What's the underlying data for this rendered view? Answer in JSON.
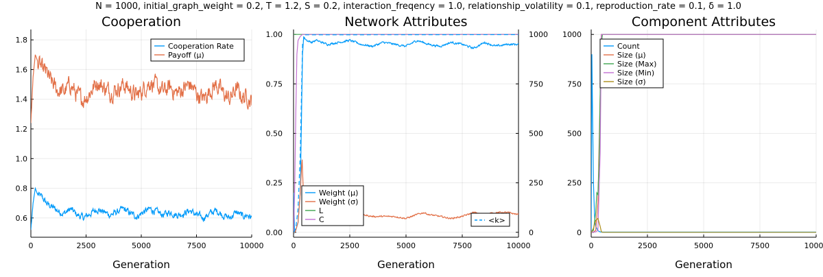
{
  "suptitle": "N = 1000, initial_graph_weight = 0.2, T = 1.2, S = 0.2, interaction_freqency = 1.0, relationship_volatility = 0.1, reproduction_rate = 0.1, δ = 1.0",
  "colors": {
    "blue": "#009AFA",
    "orange": "#E26F46",
    "green": "#3EA44E",
    "purple": "#C270D2",
    "olive": "#AC8D18"
  },
  "chart_data": [
    {
      "type": "line",
      "title": "Cooperation",
      "xlabel": "Generation",
      "xlim": [
        0,
        10000
      ],
      "ylim": [
        0.47,
        1.87
      ],
      "xticks": [
        "0",
        "2500",
        "5000",
        "7500",
        "10000"
      ],
      "yticks": [
        "0.6",
        "0.8",
        "1.0",
        "1.2",
        "1.4",
        "1.6",
        "1.8"
      ],
      "legend_position": "top-right",
      "series": [
        {
          "name": "Cooperation Rate",
          "color": "#009AFA",
          "x": [
            0,
            100,
            200,
            300,
            500,
            700,
            900,
            1200,
            1500,
            1800,
            2100,
            2400,
            2700,
            3000,
            3300,
            3600,
            3900,
            4200,
            4500,
            4800,
            5100,
            5400,
            5700,
            6000,
            6300,
            6600,
            6900,
            7200,
            7500,
            7800,
            8100,
            8400,
            8700,
            9000,
            9300,
            9600,
            9800,
            10000
          ],
          "y": [
            0.52,
            0.7,
            0.8,
            0.76,
            0.74,
            0.7,
            0.68,
            0.65,
            0.63,
            0.66,
            0.62,
            0.6,
            0.63,
            0.66,
            0.64,
            0.62,
            0.64,
            0.66,
            0.63,
            0.61,
            0.64,
            0.66,
            0.64,
            0.62,
            0.64,
            0.62,
            0.63,
            0.65,
            0.62,
            0.6,
            0.63,
            0.65,
            0.62,
            0.6,
            0.64,
            0.61,
            0.62,
            0.6
          ]
        },
        {
          "name": "Payoff (μ)",
          "color": "#E26F46",
          "x": [
            0,
            100,
            200,
            300,
            500,
            700,
            900,
            1200,
            1500,
            1800,
            2100,
            2400,
            2700,
            3000,
            3300,
            3600,
            3900,
            4200,
            4500,
            4800,
            5100,
            5400,
            5700,
            6000,
            6300,
            6600,
            6900,
            7200,
            7500,
            7800,
            8100,
            8400,
            8700,
            9000,
            9300,
            9600,
            9800,
            10000
          ],
          "y": [
            1.24,
            1.55,
            1.7,
            1.66,
            1.6,
            1.58,
            1.52,
            1.46,
            1.45,
            1.5,
            1.42,
            1.4,
            1.45,
            1.52,
            1.48,
            1.45,
            1.47,
            1.5,
            1.46,
            1.42,
            1.47,
            1.52,
            1.48,
            1.45,
            1.48,
            1.44,
            1.47,
            1.5,
            1.44,
            1.4,
            1.46,
            1.5,
            1.44,
            1.4,
            1.47,
            1.41,
            1.42,
            1.38
          ]
        }
      ]
    },
    {
      "type": "line",
      "title": "Network Attributes",
      "xlabel": "Generation",
      "xlim": [
        0,
        10000
      ],
      "ylim": [
        -0.025,
        1.025
      ],
      "y2lim": [
        -25,
        1025
      ],
      "xticks": [
        "0",
        "2500",
        "5000",
        "7500",
        "10000"
      ],
      "yticks": [
        "0.00",
        "0.25",
        "0.50",
        "0.75",
        "1.00"
      ],
      "y2ticks": [
        "0",
        "250",
        "500",
        "750",
        "1000"
      ],
      "legend_position": "bottom-left",
      "legend2_position": "bottom-right",
      "series": [
        {
          "name": "Weight (μ)",
          "color": "#009AFA",
          "x": [
            0,
            50,
            100,
            200,
            300,
            400,
            450,
            500,
            600,
            800,
            1000,
            1500,
            2000,
            2500,
            3000,
            3500,
            4000,
            4500,
            5000,
            5500,
            6000,
            6500,
            7000,
            7500,
            8000,
            8500,
            9000,
            9500,
            10000
          ],
          "y": [
            0.2,
            0.0,
            0.01,
            0.05,
            0.2,
            0.9,
            0.99,
            0.98,
            0.97,
            0.96,
            0.97,
            0.95,
            0.96,
            0.97,
            0.95,
            0.94,
            0.96,
            0.95,
            0.94,
            0.97,
            0.95,
            0.94,
            0.96,
            0.95,
            0.93,
            0.96,
            0.94,
            0.95,
            0.95
          ]
        },
        {
          "name": "Weight (σ)",
          "color": "#E26F46",
          "x": [
            0,
            50,
            100,
            200,
            300,
            380,
            420,
            500,
            600,
            800,
            1000,
            1500,
            2000,
            2500,
            3000,
            3500,
            4000,
            4500,
            5000,
            5500,
            5800,
            6000,
            6500,
            7000,
            7500,
            8000,
            8500,
            9000,
            9500,
            10000
          ],
          "y": [
            0.0,
            0.0,
            0.01,
            0.05,
            0.2,
            0.38,
            0.25,
            0.1,
            0.11,
            0.1,
            0.09,
            0.1,
            0.09,
            0.1,
            0.09,
            0.08,
            0.08,
            0.08,
            0.07,
            0.09,
            0.1,
            0.09,
            0.08,
            0.07,
            0.08,
            0.1,
            0.09,
            0.1,
            0.1,
            0.09
          ]
        },
        {
          "name": "L",
          "color": "#3EA44E",
          "x": [
            0,
            100,
            200,
            300,
            400,
            500,
            10000
          ],
          "y": [
            1.0,
            1.0,
            1.0,
            1.0,
            1.0,
            1.0,
            1.0
          ]
        },
        {
          "name": "C",
          "color": "#C270D2",
          "x": [
            0,
            50,
            100,
            150,
            200,
            300,
            400,
            500,
            10000
          ],
          "y": [
            0.0,
            0.2,
            0.6,
            0.9,
            0.97,
            0.99,
            1.0,
            1.0,
            1.0
          ]
        },
        {
          "name": "<k>",
          "color": "#009AFA",
          "axis": "right",
          "dashed": true,
          "x": [
            0,
            100,
            200,
            300,
            400,
            500,
            10000
          ],
          "y": [
            0,
            20,
            120,
            400,
            950,
            998,
            999
          ]
        }
      ]
    },
    {
      "type": "line",
      "title": "Component Attributes",
      "xlabel": "Generation",
      "xlim": [
        0,
        10000
      ],
      "ylim": [
        -25,
        1025
      ],
      "xticks": [
        "0",
        "2500",
        "5000",
        "7500",
        "10000"
      ],
      "yticks": [
        "0",
        "250",
        "500",
        "750",
        "1000"
      ],
      "legend_position": "top-left",
      "series": [
        {
          "name": "Count",
          "color": "#009AFA",
          "x": [
            0,
            30,
            60,
            100,
            150,
            200,
            300,
            400,
            450,
            10000
          ],
          "y": [
            0,
            900,
            600,
            250,
            80,
            30,
            8,
            2,
            1,
            1
          ]
        },
        {
          "name": "Size (μ)",
          "color": "#E26F46",
          "x": [
            0,
            100,
            200,
            300,
            400,
            450,
            500,
            10000
          ],
          "y": [
            1,
            1,
            10,
            150,
            700,
            1000,
            1000,
            1000
          ]
        },
        {
          "name": "Size (Max)",
          "color": "#3EA44E",
          "x": [
            0,
            100,
            200,
            250,
            300,
            350,
            400,
            450,
            500,
            10000
          ],
          "y": [
            1,
            10,
            100,
            200,
            190,
            350,
            700,
            950,
            1000,
            1000
          ]
        },
        {
          "name": "Size (Min)",
          "color": "#C270D2",
          "x": [
            0,
            100,
            200,
            300,
            400,
            450,
            500,
            10000
          ],
          "y": [
            1,
            1,
            2,
            10,
            400,
            1000,
            1000,
            1000
          ]
        },
        {
          "name": "Size (σ)",
          "color": "#AC8D18",
          "x": [
            0,
            100,
            200,
            300,
            400,
            450,
            500,
            10000
          ],
          "y": [
            0,
            20,
            60,
            70,
            30,
            3,
            0,
            0
          ]
        }
      ]
    }
  ]
}
